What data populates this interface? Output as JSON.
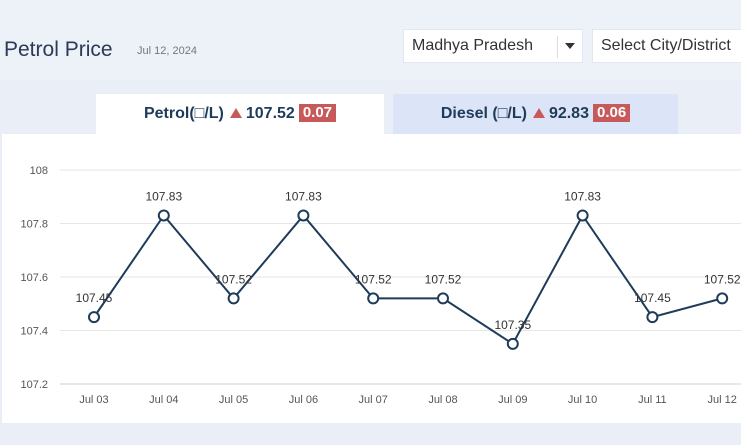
{
  "header": {
    "title": "Petrol Price",
    "date": "Jul 12, 2024",
    "state_select": "Madhya Pradesh",
    "city_select": "Select City/District"
  },
  "tabs": {
    "petrol": {
      "label": "Petrol(□/L)",
      "price": "107.52",
      "change": "0.07"
    },
    "diesel": {
      "label": "Diesel (□/L)",
      "price": "92.83",
      "change": "0.06"
    }
  },
  "colors": {
    "line": "#1f3b5a",
    "up_badge": "#c8595b",
    "active_tab": "#ffffff",
    "inactive_tab": "#dbe5f7"
  },
  "chart_data": {
    "type": "line",
    "categories": [
      "Jul 03",
      "Jul 04",
      "Jul 05",
      "Jul 06",
      "Jul 07",
      "Jul 08",
      "Jul 09",
      "Jul 10",
      "Jul 11",
      "Jul 12"
    ],
    "values": [
      107.45,
      107.83,
      107.52,
      107.83,
      107.52,
      107.52,
      107.35,
      107.83,
      107.45,
      107.52
    ],
    "data_labels": [
      "107.45",
      "107.83",
      "107.52",
      "107.83",
      "107.52",
      "107.52",
      "107.35",
      "107.83",
      "107.45",
      "107.52"
    ],
    "yticks": [
      "107.2",
      "107.4",
      "107.6",
      "107.8",
      "108"
    ],
    "ylim": [
      107.2,
      108
    ],
    "grid": true,
    "legend": "none"
  }
}
